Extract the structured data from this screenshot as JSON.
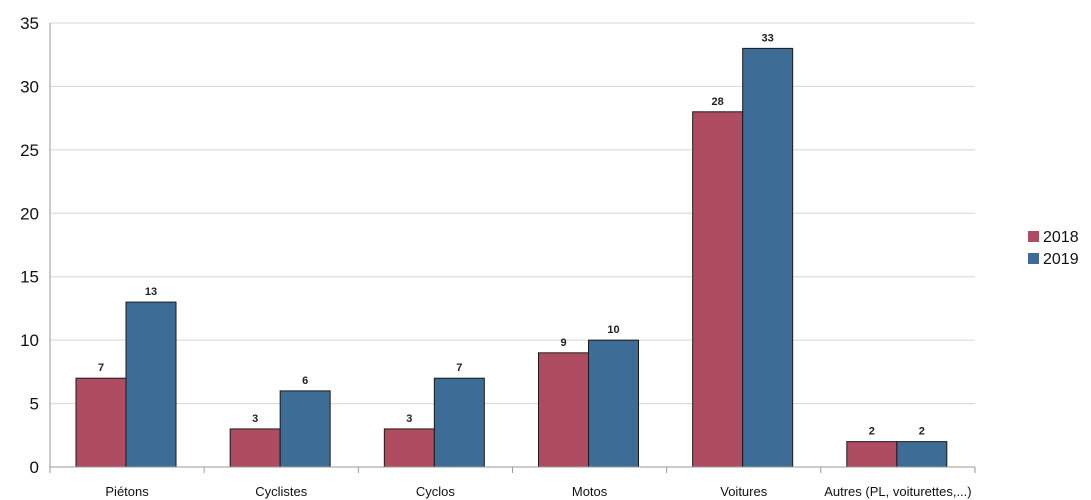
{
  "chart_data": {
    "type": "bar",
    "categories": [
      "Piétons",
      "Cyclistes",
      "Cyclos",
      "Motos",
      "Voitures",
      "Autres (PL, voiturettes,...)"
    ],
    "series": [
      {
        "name": "2018",
        "values": [
          7,
          3,
          3,
          9,
          28,
          2
        ],
        "labels": [
          "7",
          "3",
          "3",
          "9",
          "28",
          "2"
        ],
        "color": "#b04c62"
      },
      {
        "name": "2019",
        "values": [
          13,
          6,
          7,
          10,
          33,
          2
        ],
        "labels": [
          "13",
          "6",
          "7",
          "10",
          "33",
          "2"
        ],
        "color": "#3d6d97"
      }
    ],
    "ylim": [
      0,
      35
    ],
    "yticks": [
      0,
      5,
      10,
      15,
      20,
      25,
      30,
      35
    ],
    "ytick_labels": [
      "0",
      "5",
      "10",
      "15",
      "20",
      "25",
      "30",
      "35"
    ],
    "grid": true,
    "legend_position": "right"
  }
}
